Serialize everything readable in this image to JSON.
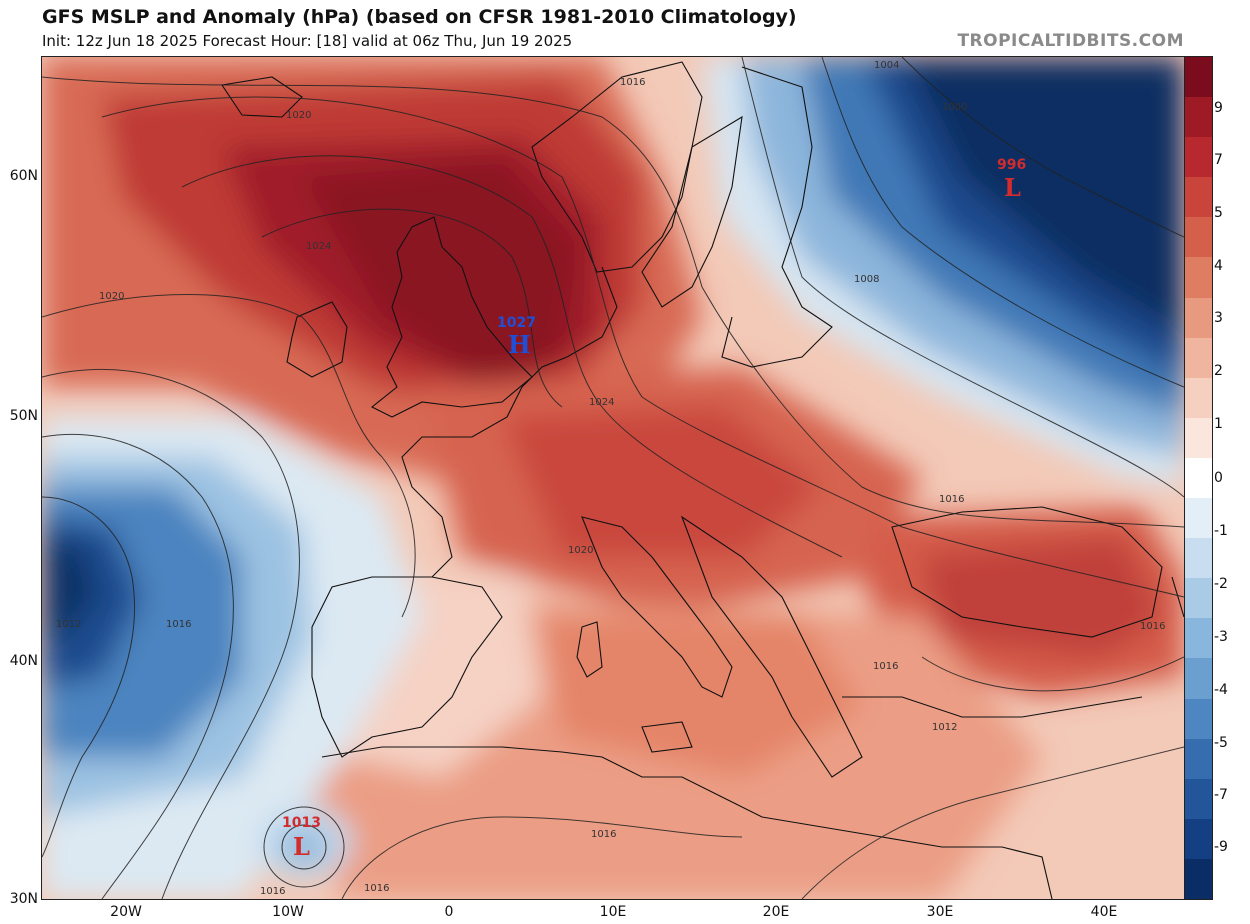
{
  "header": {
    "title": "GFS MSLP and Anomaly (hPa) (based on CFSR 1981-2010 Climatology)",
    "subtitle": "Init: 12z Jun 18 2025   Forecast Hour: [18]   valid at 06z Thu, Jun 19 2025",
    "brand": "TROPICALTIDBITS.COM"
  },
  "map": {
    "lat_labels": [
      "60N",
      "50N",
      "40N",
      "30N"
    ],
    "lon_labels": [
      "20W",
      "10W",
      "0",
      "10E",
      "20E",
      "30E",
      "40E"
    ],
    "pressure_systems": [
      {
        "type": "H",
        "value": "1027",
        "color": "#1f4fd6"
      },
      {
        "type": "L",
        "value": "996",
        "color": "#d22c2c"
      },
      {
        "type": "L",
        "value": "1013",
        "color": "#d22c2c"
      }
    ],
    "isobar_labels": [
      "1004",
      "1000",
      "1016",
      "1020",
      "1024",
      "1008",
      "1012",
      "1016",
      "1020",
      "1024",
      "1012",
      "1016",
      "1016",
      "1016",
      "1016",
      "1020",
      "1016",
      "1016",
      "1012",
      "1016",
      "1016"
    ]
  },
  "colorbar": {
    "labels": [
      "9",
      "7",
      "5",
      "4",
      "3",
      "2",
      "1",
      "0",
      "-1",
      "-2",
      "-3",
      "-4",
      "-5",
      "-7",
      "-9"
    ],
    "colors": [
      "#7a0c1e",
      "#9e1b26",
      "#b8292f",
      "#c9453b",
      "#d4604c",
      "#de7d62",
      "#e79a80",
      "#efb59f",
      "#f5cfc0",
      "#fae6dd",
      "#ffffff",
      "#e3eef7",
      "#c8def0",
      "#a9cbe6",
      "#88b6dc",
      "#6a9fcf",
      "#4d86c0",
      "#366daf",
      "#23559b",
      "#143f82",
      "#0b2d66"
    ]
  }
}
